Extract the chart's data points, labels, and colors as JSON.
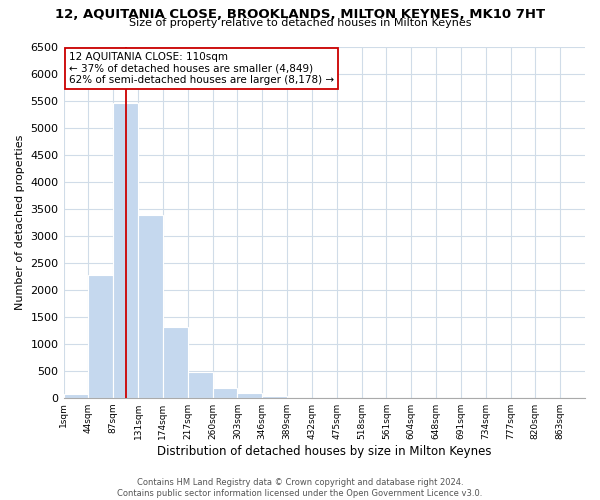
{
  "title": "12, AQUITANIA CLOSE, BROOKLANDS, MILTON KEYNES, MK10 7HT",
  "subtitle": "Size of property relative to detached houses in Milton Keynes",
  "xlabel": "Distribution of detached houses by size in Milton Keynes",
  "ylabel": "Number of detached properties",
  "bar_color": "#c5d8ee",
  "bar_edge_color": "#ffffff",
  "grid_color": "#d0dce8",
  "background_color": "#ffffff",
  "annotation_line_color": "#cc0000",
  "annotation_box_edge": "#cc0000",
  "bin_labels": [
    "1sqm",
    "44sqm",
    "87sqm",
    "131sqm",
    "174sqm",
    "217sqm",
    "260sqm",
    "303sqm",
    "346sqm",
    "389sqm",
    "432sqm",
    "475sqm",
    "518sqm",
    "561sqm",
    "604sqm",
    "648sqm",
    "691sqm",
    "734sqm",
    "777sqm",
    "820sqm",
    "863sqm"
  ],
  "bar_heights": [
    70,
    2280,
    5450,
    3380,
    1300,
    480,
    185,
    80,
    40,
    0,
    0,
    0,
    0,
    0,
    0,
    0,
    0,
    0,
    0,
    0
  ],
  "ylim": [
    0,
    6500
  ],
  "yticks": [
    0,
    500,
    1000,
    1500,
    2000,
    2500,
    3000,
    3500,
    4000,
    4500,
    5000,
    5500,
    6000,
    6500
  ],
  "annotation_text": "12 AQUITANIA CLOSE: 110sqm\n← 37% of detached houses are smaller (4,849)\n62% of semi-detached houses are larger (8,178) →",
  "footer_line1": "Contains HM Land Registry data © Crown copyright and database right 2024.",
  "footer_line2": "Contains public sector information licensed under the Open Government Licence v3.0.",
  "property_sqm": 110,
  "bin_start_sqm": [
    1,
    44,
    87,
    131,
    174,
    217,
    260,
    303,
    346,
    389,
    432,
    475,
    518,
    561,
    604,
    648,
    691,
    734,
    777,
    820,
    863
  ]
}
